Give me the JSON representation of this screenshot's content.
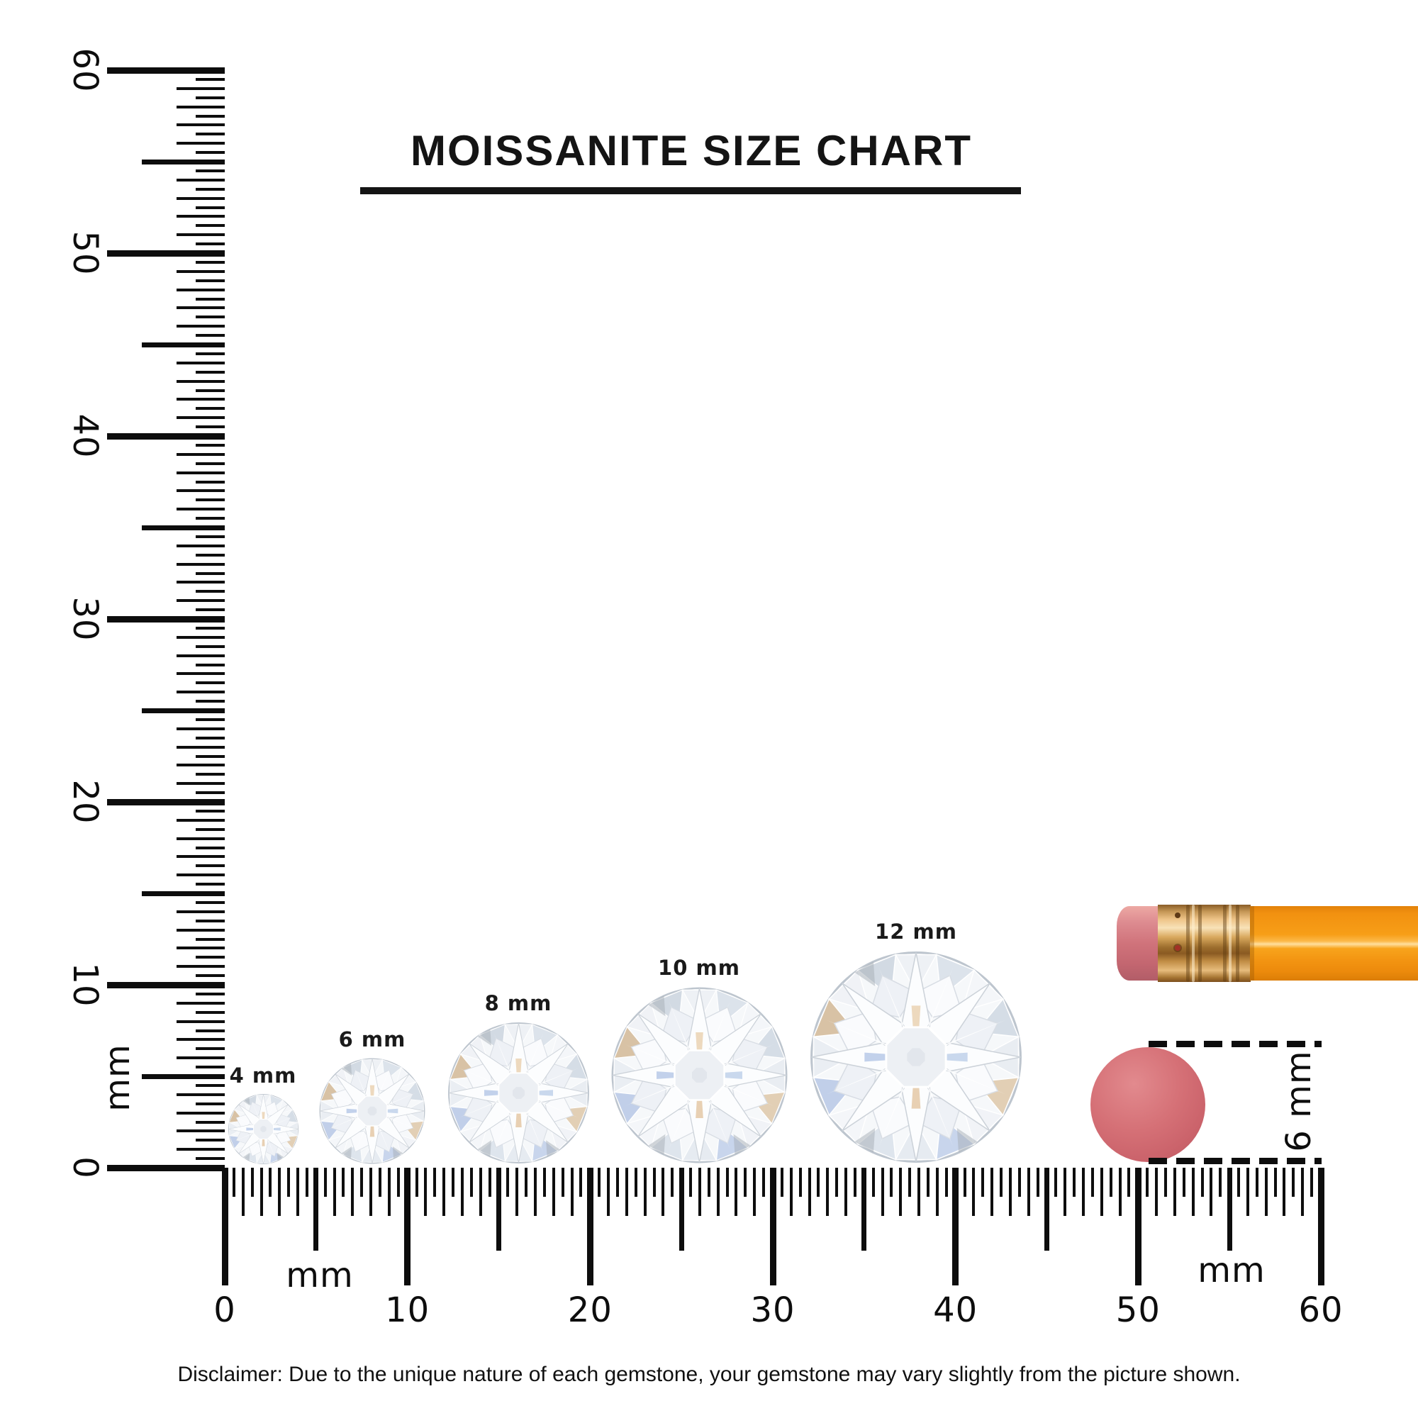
{
  "title": "MOISSANITE SIZE CHART",
  "rulers": {
    "unit": "mm",
    "range_mm": [
      0,
      60
    ],
    "minor_step_mm": 0.5,
    "horizontal": {
      "tick_labels": [
        "0",
        "10",
        "20",
        "30",
        "40",
        "50",
        "60"
      ]
    },
    "vertical": {
      "tick_labels": [
        "0",
        "10",
        "20",
        "30",
        "40",
        "50",
        "60"
      ]
    }
  },
  "gems": [
    {
      "label": "4 mm",
      "size_mm": 4
    },
    {
      "label": "6 mm",
      "size_mm": 6
    },
    {
      "label": "8 mm",
      "size_mm": 8
    },
    {
      "label": "10 mm",
      "size_mm": 10
    },
    {
      "label": "12 mm",
      "size_mm": 12
    }
  ],
  "reference_objects": {
    "pencil": {
      "name": "pencil with eraser",
      "body_color": "#f49a12",
      "ferrule_color": "#d9a85e",
      "eraser_color": "#d47a82"
    },
    "eraser_end_circle": {
      "label": "6 mm",
      "diameter_mm": 6,
      "color": "#d06b72"
    }
  },
  "disclaimer": "Disclaimer: Due to the unique nature of each gemstone, your gemstone may vary slightly from the picture shown.",
  "ink_color": "#0d0d0d"
}
